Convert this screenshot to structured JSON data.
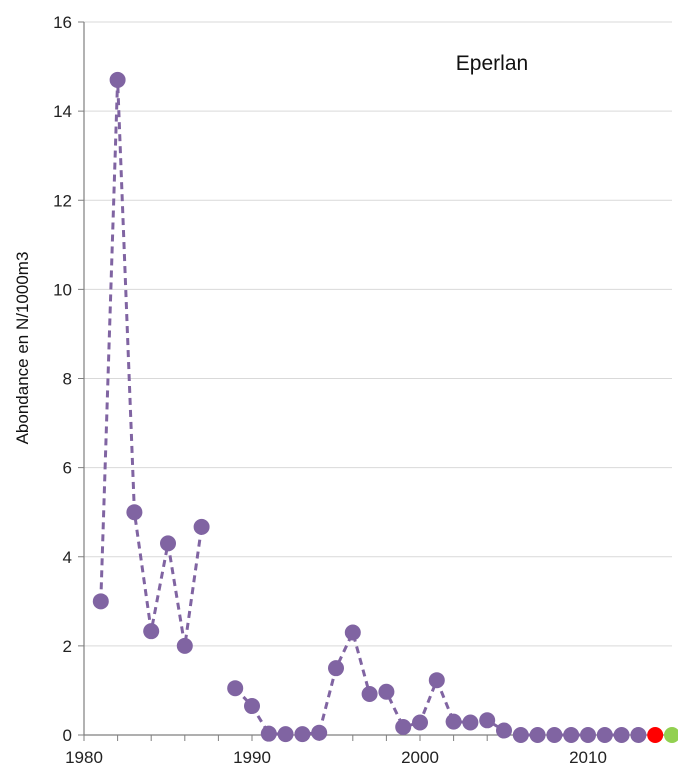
{
  "chart_data": {
    "type": "line",
    "title": "Eperlan",
    "xlabel": "",
    "ylabel": "Abondance en N/1000m3",
    "xlim": [
      1980,
      2015
    ],
    "ylim": [
      0,
      16
    ],
    "x_ticks": [
      1980,
      1990,
      2000,
      2010
    ],
    "y_ticks": [
      0,
      2,
      4,
      6,
      8,
      10,
      12,
      14,
      16
    ],
    "grid": "horizontal",
    "line_style": "dashed",
    "series": [
      {
        "color": "#8064a2",
        "segments": [
          [
            {
              "x": 1981,
              "y": 3.0
            },
            {
              "x": 1982,
              "y": 14.7
            },
            {
              "x": 1983,
              "y": 5.0
            },
            {
              "x": 1984,
              "y": 2.33
            },
            {
              "x": 1985,
              "y": 4.3
            },
            {
              "x": 1986,
              "y": 2.0
            },
            {
              "x": 1987,
              "y": 4.67
            }
          ],
          [
            {
              "x": 1989,
              "y": 1.05
            },
            {
              "x": 1990,
              "y": 0.65
            },
            {
              "x": 1991,
              "y": 0.03
            },
            {
              "x": 1992,
              "y": 0.02
            },
            {
              "x": 1993,
              "y": 0.02
            },
            {
              "x": 1994,
              "y": 0.05
            },
            {
              "x": 1995,
              "y": 1.5
            },
            {
              "x": 1996,
              "y": 2.3
            },
            {
              "x": 1997,
              "y": 0.92
            },
            {
              "x": 1998,
              "y": 0.97
            },
            {
              "x": 1999,
              "y": 0.18
            },
            {
              "x": 2000,
              "y": 0.28
            },
            {
              "x": 2001,
              "y": 1.23
            },
            {
              "x": 2002,
              "y": 0.3
            },
            {
              "x": 2003,
              "y": 0.28
            },
            {
              "x": 2004,
              "y": 0.33
            },
            {
              "x": 2005,
              "y": 0.1
            },
            {
              "x": 2006,
              "y": 0.0
            },
            {
              "x": 2007,
              "y": 0.0
            },
            {
              "x": 2008,
              "y": 0.0
            },
            {
              "x": 2009,
              "y": 0.0
            },
            {
              "x": 2010,
              "y": 0.0
            },
            {
              "x": 2011,
              "y": 0.0
            },
            {
              "x": 2012,
              "y": 0.0
            },
            {
              "x": 2013,
              "y": 0.0
            }
          ]
        ]
      }
    ],
    "highlight_points": [
      {
        "x": 2014,
        "y": 0.0,
        "color": "#ff0000"
      },
      {
        "x": 2015,
        "y": 0.0,
        "color": "#92d050"
      }
    ],
    "colors": {
      "gridline": "#d9d9d9",
      "axis": "#7f7f7f"
    }
  }
}
